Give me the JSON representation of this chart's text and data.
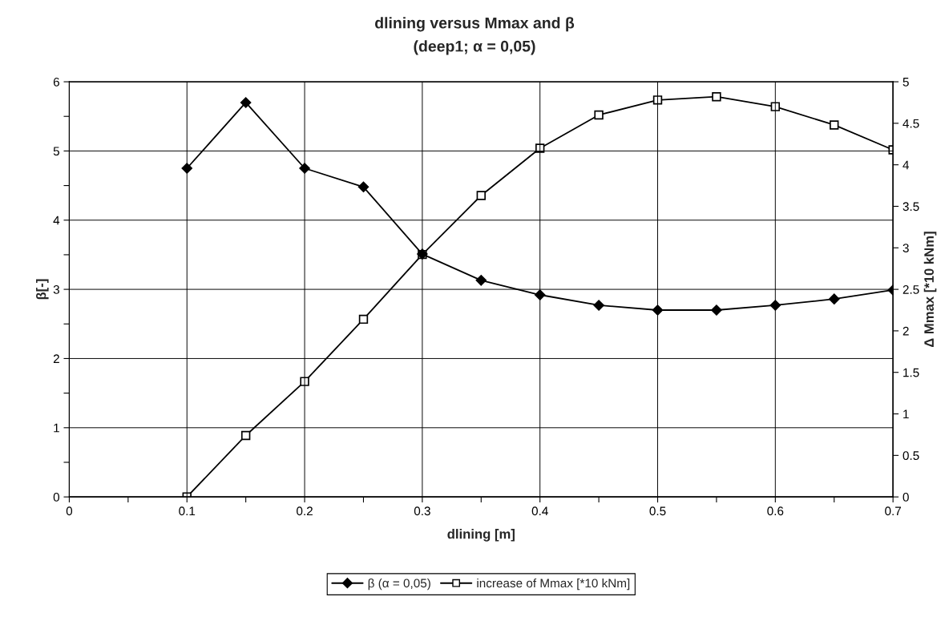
{
  "chart_data": {
    "type": "line",
    "title": "dlining versus Mmax and β",
    "subtitle": "(deep1; α = 0,05)",
    "xlabel": "dlining [m]",
    "ylabel": "β[-]",
    "y2label": "Δ Mmax [*10 kNm]",
    "x": [
      0.1,
      0.15,
      0.2,
      0.25,
      0.3,
      0.35,
      0.4,
      0.45,
      0.5,
      0.55,
      0.6,
      0.65,
      0.7
    ],
    "series": [
      {
        "name": "β (α = 0,05)",
        "color": "#000000",
        "marker": "diamond",
        "values": [
          4.75,
          5.7,
          4.75,
          4.48,
          3.51,
          3.13,
          2.92,
          2.77,
          2.7,
          2.7,
          2.77,
          2.86,
          2.99
        ]
      },
      {
        "name": "increase of Mmax [*10 kNm]",
        "color": "#000000",
        "marker": "square",
        "axis": "y2",
        "values": [
          0,
          0.74,
          1.39,
          2.14,
          2.92,
          3.63,
          4.2,
          4.6,
          4.78,
          4.82,
          4.7,
          4.48,
          4.18
        ]
      }
    ],
    "xlim": [
      0,
      0.7
    ],
    "xticks": [
      0,
      {
        "value": 0.05,
        "label": null
      },
      0.1,
      {
        "value": 0.15,
        "label": null
      },
      0.2,
      {
        "value": 0.25,
        "label": null
      },
      0.3,
      {
        "value": 0.35,
        "label": null
      },
      0.4,
      {
        "value": 0.45,
        "label": null
      },
      0.5,
      {
        "value": 0.55,
        "label": null
      },
      0.6,
      {
        "value": 0.65,
        "label": null
      },
      0.7
    ],
    "ylim": [
      0,
      6
    ],
    "yticks": [
      0,
      {
        "value": 0.5,
        "label": null
      },
      1,
      {
        "value": 1.5,
        "label": null
      },
      2,
      {
        "value": 2.5,
        "label": null
      },
      3,
      {
        "value": 3.5,
        "label": null
      },
      4,
      {
        "value": 4.5,
        "label": null
      },
      5,
      {
        "value": 5.5,
        "label": null
      },
      6
    ],
    "y2lim": [
      0,
      5
    ],
    "y2ticks": [
      0,
      0.5,
      1,
      1.5,
      2,
      2.5,
      3,
      3.5,
      4,
      4.5,
      5
    ],
    "grid": true,
    "legend": "bottom",
    "line_style": "solid"
  }
}
